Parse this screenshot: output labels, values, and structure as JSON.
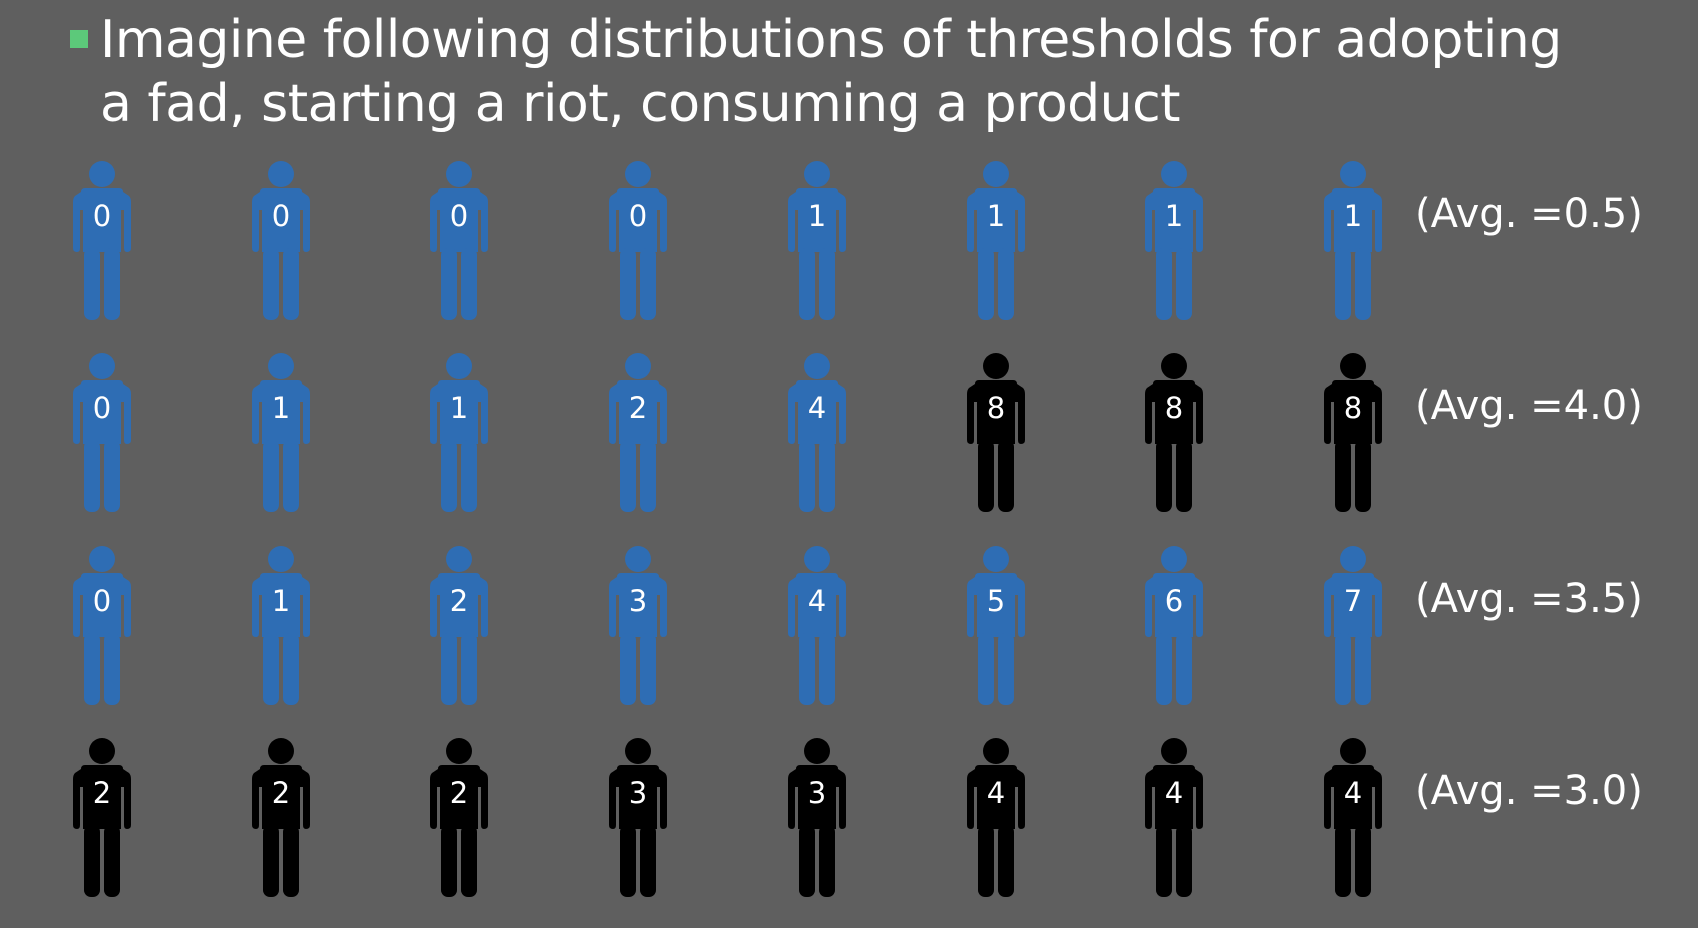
{
  "title": {
    "line1": "Imagine following distributions of thresholds for adopting",
    "line2": "a fad, starting a riot, consuming a product"
  },
  "colors": {
    "background": "#5f5f5f",
    "bullet": "#5cc97a",
    "blue_figure": "#2e6db4",
    "black_figure": "#000000",
    "text": "#ffffff"
  },
  "icons": {
    "person": "person-icon",
    "bullet": "square-bullet-icon"
  },
  "rows": [
    {
      "avg_label": "(Avg. =0.5)",
      "people": [
        {
          "value": "0",
          "color": "blue"
        },
        {
          "value": "0",
          "color": "blue"
        },
        {
          "value": "0",
          "color": "blue"
        },
        {
          "value": "0",
          "color": "blue"
        },
        {
          "value": "1",
          "color": "blue"
        },
        {
          "value": "1",
          "color": "blue"
        },
        {
          "value": "1",
          "color": "blue"
        },
        {
          "value": "1",
          "color": "blue"
        }
      ]
    },
    {
      "avg_label": "(Avg. =4.0)",
      "people": [
        {
          "value": "0",
          "color": "blue"
        },
        {
          "value": "1",
          "color": "blue"
        },
        {
          "value": "1",
          "color": "blue"
        },
        {
          "value": "2",
          "color": "blue"
        },
        {
          "value": "4",
          "color": "blue"
        },
        {
          "value": "8",
          "color": "black"
        },
        {
          "value": "8",
          "color": "black"
        },
        {
          "value": "8",
          "color": "black"
        }
      ]
    },
    {
      "avg_label": "(Avg. =3.5)",
      "people": [
        {
          "value": "0",
          "color": "blue"
        },
        {
          "value": "1",
          "color": "blue"
        },
        {
          "value": "2",
          "color": "blue"
        },
        {
          "value": "3",
          "color": "blue"
        },
        {
          "value": "4",
          "color": "blue"
        },
        {
          "value": "5",
          "color": "blue"
        },
        {
          "value": "6",
          "color": "blue"
        },
        {
          "value": "7",
          "color": "blue"
        }
      ]
    },
    {
      "avg_label": "(Avg. =3.0)",
      "people": [
        {
          "value": "2",
          "color": "black"
        },
        {
          "value": "2",
          "color": "black"
        },
        {
          "value": "2",
          "color": "black"
        },
        {
          "value": "3",
          "color": "black"
        },
        {
          "value": "3",
          "color": "black"
        },
        {
          "value": "4",
          "color": "black"
        },
        {
          "value": "4",
          "color": "black"
        },
        {
          "value": "4",
          "color": "black"
        }
      ]
    }
  ]
}
